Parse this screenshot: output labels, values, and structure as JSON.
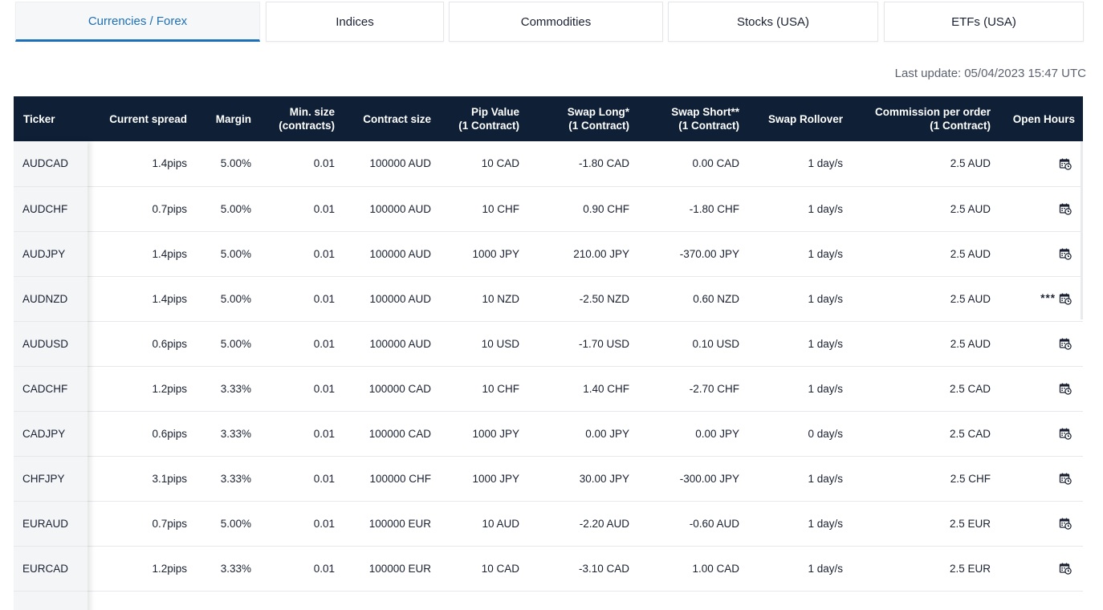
{
  "tabs": [
    {
      "label": "Currencies / Forex",
      "active": true
    },
    {
      "label": "Indices",
      "active": false
    },
    {
      "label": "Commodities",
      "active": false
    },
    {
      "label": "Stocks (USA)",
      "active": false
    },
    {
      "label": "ETFs (USA)",
      "active": false
    }
  ],
  "last_update": {
    "label": "Last update:",
    "value": "05/04/2023 15:47 UTC"
  },
  "colors": {
    "header_bg": "#0e1f36",
    "accent": "#1c6fb8"
  },
  "table": {
    "headers": [
      {
        "line1": "Ticker",
        "line2": ""
      },
      {
        "line1": "Current spread",
        "line2": ""
      },
      {
        "line1": "Margin",
        "line2": ""
      },
      {
        "line1": "Min. size",
        "line2": "(contracts)"
      },
      {
        "line1": "Contract size",
        "line2": ""
      },
      {
        "line1": "Pip Value",
        "line2": "(1 Contract)"
      },
      {
        "line1": "Swap Long*",
        "line2": "(1 Contract)"
      },
      {
        "line1": "Swap Short**",
        "line2": "(1 Contract)"
      },
      {
        "line1": "Swap Rollover",
        "line2": ""
      },
      {
        "line1": "Commission per order",
        "line2": "(1 Contract)"
      },
      {
        "line1": "Open Hours",
        "line2": ""
      }
    ],
    "rows": [
      {
        "ticker": "AUDCAD",
        "spread": "1.4pips",
        "margin": "5.00%",
        "min_size": "0.01",
        "contract_size": "100000 AUD",
        "pip_value": "10 CAD",
        "swap_long": "-1.80 CAD",
        "swap_short": "0.00 CAD",
        "rollover": "1 day/s",
        "commission": "2.5 AUD",
        "hours_note": "",
        "hours_icon": "calendar-clock-icon"
      },
      {
        "ticker": "AUDCHF",
        "spread": "0.7pips",
        "margin": "5.00%",
        "min_size": "0.01",
        "contract_size": "100000 AUD",
        "pip_value": "10 CHF",
        "swap_long": "0.90 CHF",
        "swap_short": "-1.80 CHF",
        "rollover": "1 day/s",
        "commission": "2.5 AUD",
        "hours_note": "",
        "hours_icon": "calendar-clock-icon"
      },
      {
        "ticker": "AUDJPY",
        "spread": "1.4pips",
        "margin": "5.00%",
        "min_size": "0.01",
        "contract_size": "100000 AUD",
        "pip_value": "1000 JPY",
        "swap_long": "210.00 JPY",
        "swap_short": "-370.00 JPY",
        "rollover": "1 day/s",
        "commission": "2.5 AUD",
        "hours_note": "",
        "hours_icon": "calendar-clock-icon"
      },
      {
        "ticker": "AUDNZD",
        "spread": "1.4pips",
        "margin": "5.00%",
        "min_size": "0.01",
        "contract_size": "100000 AUD",
        "pip_value": "10 NZD",
        "swap_long": "-2.50 NZD",
        "swap_short": "0.60 NZD",
        "rollover": "1 day/s",
        "commission": "2.5 AUD",
        "hours_note": "***",
        "hours_icon": "calendar-clock-icon"
      },
      {
        "ticker": "AUDUSD",
        "spread": "0.6pips",
        "margin": "5.00%",
        "min_size": "0.01",
        "contract_size": "100000 AUD",
        "pip_value": "10 USD",
        "swap_long": "-1.70 USD",
        "swap_short": "0.10 USD",
        "rollover": "1 day/s",
        "commission": "2.5 AUD",
        "hours_note": "",
        "hours_icon": "calendar-clock-icon"
      },
      {
        "ticker": "CADCHF",
        "spread": "1.2pips",
        "margin": "3.33%",
        "min_size": "0.01",
        "contract_size": "100000 CAD",
        "pip_value": "10 CHF",
        "swap_long": "1.40 CHF",
        "swap_short": "-2.70 CHF",
        "rollover": "1 day/s",
        "commission": "2.5 CAD",
        "hours_note": "",
        "hours_icon": "calendar-clock-icon"
      },
      {
        "ticker": "CADJPY",
        "spread": "0.6pips",
        "margin": "3.33%",
        "min_size": "0.01",
        "contract_size": "100000 CAD",
        "pip_value": "1000 JPY",
        "swap_long": "0.00 JPY",
        "swap_short": "0.00 JPY",
        "rollover": "0 day/s",
        "commission": "2.5 CAD",
        "hours_note": "",
        "hours_icon": "calendar-clock-icon"
      },
      {
        "ticker": "CHFJPY",
        "spread": "3.1pips",
        "margin": "3.33%",
        "min_size": "0.01",
        "contract_size": "100000 CHF",
        "pip_value": "1000 JPY",
        "swap_long": "30.00 JPY",
        "swap_short": "-300.00 JPY",
        "rollover": "1 day/s",
        "commission": "2.5 CHF",
        "hours_note": "",
        "hours_icon": "calendar-clock-icon"
      },
      {
        "ticker": "EURAUD",
        "spread": "0.7pips",
        "margin": "5.00%",
        "min_size": "0.01",
        "contract_size": "100000 EUR",
        "pip_value": "10 AUD",
        "swap_long": "-2.20 AUD",
        "swap_short": "-0.60 AUD",
        "rollover": "1 day/s",
        "commission": "2.5 EUR",
        "hours_note": "",
        "hours_icon": "calendar-clock-icon"
      },
      {
        "ticker": "EURCAD",
        "spread": "1.2pips",
        "margin": "3.33%",
        "min_size": "0.01",
        "contract_size": "100000 EUR",
        "pip_value": "10 CAD",
        "swap_long": "-3.10 CAD",
        "swap_short": "1.00 CAD",
        "rollover": "1 day/s",
        "commission": "2.5 EUR",
        "hours_note": "",
        "hours_icon": "calendar-clock-icon"
      },
      {
        "ticker": "",
        "spread": "",
        "margin": "",
        "min_size": "",
        "contract_size": "",
        "pip_value": "",
        "swap_long": "",
        "swap_short": "",
        "rollover": "",
        "commission": "",
        "hours_note": "",
        "hours_icon": ""
      }
    ]
  }
}
